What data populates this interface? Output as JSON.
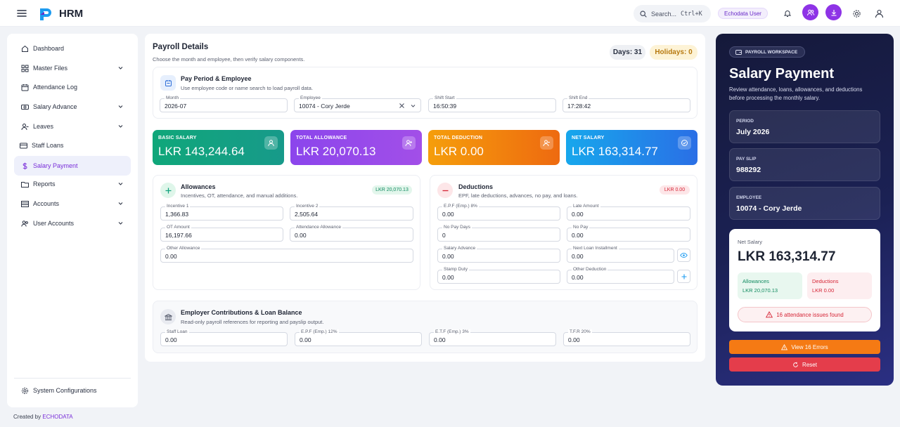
{
  "header": {
    "brand": "HRM",
    "search_placeholder": "Search...",
    "search_shortcut": "Ctrl+K",
    "user_chip": "Echodata User"
  },
  "sidebar": {
    "items": [
      {
        "label": "Dashboard",
        "icon": "home-icon"
      },
      {
        "label": "Master Files",
        "icon": "grid-icon",
        "expandable": true
      },
      {
        "label": "Attendance Log",
        "icon": "calendar-icon"
      },
      {
        "label": "Salary Advance",
        "icon": "cash-icon",
        "expandable": true
      },
      {
        "label": "Leaves",
        "icon": "user-minus-icon",
        "expandable": true
      },
      {
        "label": "Staff Loans",
        "icon": "card-icon"
      },
      {
        "label": "Salary Payment",
        "icon": "dollar-icon",
        "active": true
      },
      {
        "label": "Reports",
        "icon": "folder-icon",
        "expandable": true
      },
      {
        "label": "Accounts",
        "icon": "list-icon",
        "expandable": true
      },
      {
        "label": "User Accounts",
        "icon": "users-icon",
        "expandable": true
      }
    ],
    "bottom_item": "System Configurations"
  },
  "footer": {
    "prefix": "Created by",
    "company": "ECHODATA"
  },
  "payroll": {
    "title": "Payroll Details",
    "subtitle": "Choose the month and employee, then verify salary components.",
    "days_badge": "Days: 31",
    "holidays_badge": "Holidays: 0",
    "period_section": {
      "title": "Pay Period & Employee",
      "subtitle": "Use employee code or name search to load payroll data.",
      "fields": {
        "month": {
          "label": "Month",
          "value": "2026-07"
        },
        "employee": {
          "label": "Employee",
          "value": "10074 - Cory Jerde"
        },
        "shift_start": {
          "label": "Shift Start",
          "value": "16:50:39"
        },
        "shift_end": {
          "label": "Shift End",
          "value": "17:28:42"
        }
      }
    },
    "stats": [
      {
        "label": "BASIC SALARY",
        "value": "LKR 143,244.64",
        "color": "#12a37f"
      },
      {
        "label": "TOTAL ALLOWANCE",
        "value": "LKR 20,070.13",
        "color": "#8b45ec"
      },
      {
        "label": "TOTAL DEDUCTION",
        "value": "LKR 0.00",
        "color": "#f07a12"
      },
      {
        "label": "NET SALARY",
        "value": "LKR 163,314.77",
        "color": "#1e8cf0"
      }
    ],
    "allowances": {
      "title": "Allowances",
      "subtitle": "Incentives, OT, attendance, and manual additions.",
      "badge": "LKR 20,070.13",
      "fields": {
        "incentive1": {
          "label": "Incentive 1",
          "value": "1,366.83"
        },
        "incentive2": {
          "label": "Incentive 2",
          "value": "2,505.64"
        },
        "ot_amount": {
          "label": "OT Amount",
          "value": "16,197.66"
        },
        "attendance_allowance": {
          "label": "Attendance Allowance",
          "value": "0.00"
        },
        "other_allowance": {
          "label": "Other Allowance",
          "value": "0.00"
        }
      }
    },
    "deductions": {
      "title": "Deductions",
      "subtitle": "EPF, late deductions, advances, no pay, and loans.",
      "badge": "LKR 0.00",
      "fields": {
        "epf": {
          "label": "E.P.F (Emp.) 8%",
          "value": "0.00"
        },
        "late_amount": {
          "label": "Late Amount",
          "value": "0.00"
        },
        "no_pay_days": {
          "label": "No Pay Days",
          "value": "0"
        },
        "no_pay": {
          "label": "No Pay",
          "value": "0.00"
        },
        "salary_advance": {
          "label": "Salary Advance",
          "value": "0.00"
        },
        "next_loan": {
          "label": "Next Loan Installment",
          "value": "0.00"
        },
        "stamp_duty": {
          "label": "Stamp Duty",
          "value": "0.00"
        },
        "other_deduction": {
          "label": "Other Deduction",
          "value": "0.00"
        }
      }
    },
    "employer": {
      "title": "Employer Contributions & Loan Balance",
      "subtitle": "Read-only payroll references for reporting and payslip output.",
      "fields": {
        "staff_loan": {
          "label": "Staff Loan",
          "value": "0.00"
        },
        "epf12": {
          "label": "E.P.F (Emp.) 12%",
          "value": "0.00"
        },
        "etf3": {
          "label": "E.T.F (Emp.) 3%",
          "value": "0.00"
        },
        "tfr20": {
          "label": "T.F.R 20%",
          "value": "0.00"
        }
      }
    }
  },
  "workspace": {
    "chip": "PAYROLL WORKSPACE",
    "title": "Salary Payment",
    "subtitle": "Review attendance, loans, allowances, and deductions before processing the monthly salary.",
    "boxes": [
      {
        "label": "PERIOD",
        "value": "July 2026"
      },
      {
        "label": "PAY SLIP",
        "value": "988292"
      },
      {
        "label": "EMPLOYEE",
        "value": "10074 - Cory Jerde"
      }
    ],
    "net": {
      "label": "Net Salary",
      "value": "LKR 163,314.77",
      "allowances_label": "Allowances",
      "allowances_value": "LKR 20,070.13",
      "deductions_label": "Deductions",
      "deductions_value": "LKR 0.00",
      "warning": "16 attendance issues found"
    },
    "view_errors_label": "View 16 Errors",
    "reset_label": "Reset"
  }
}
